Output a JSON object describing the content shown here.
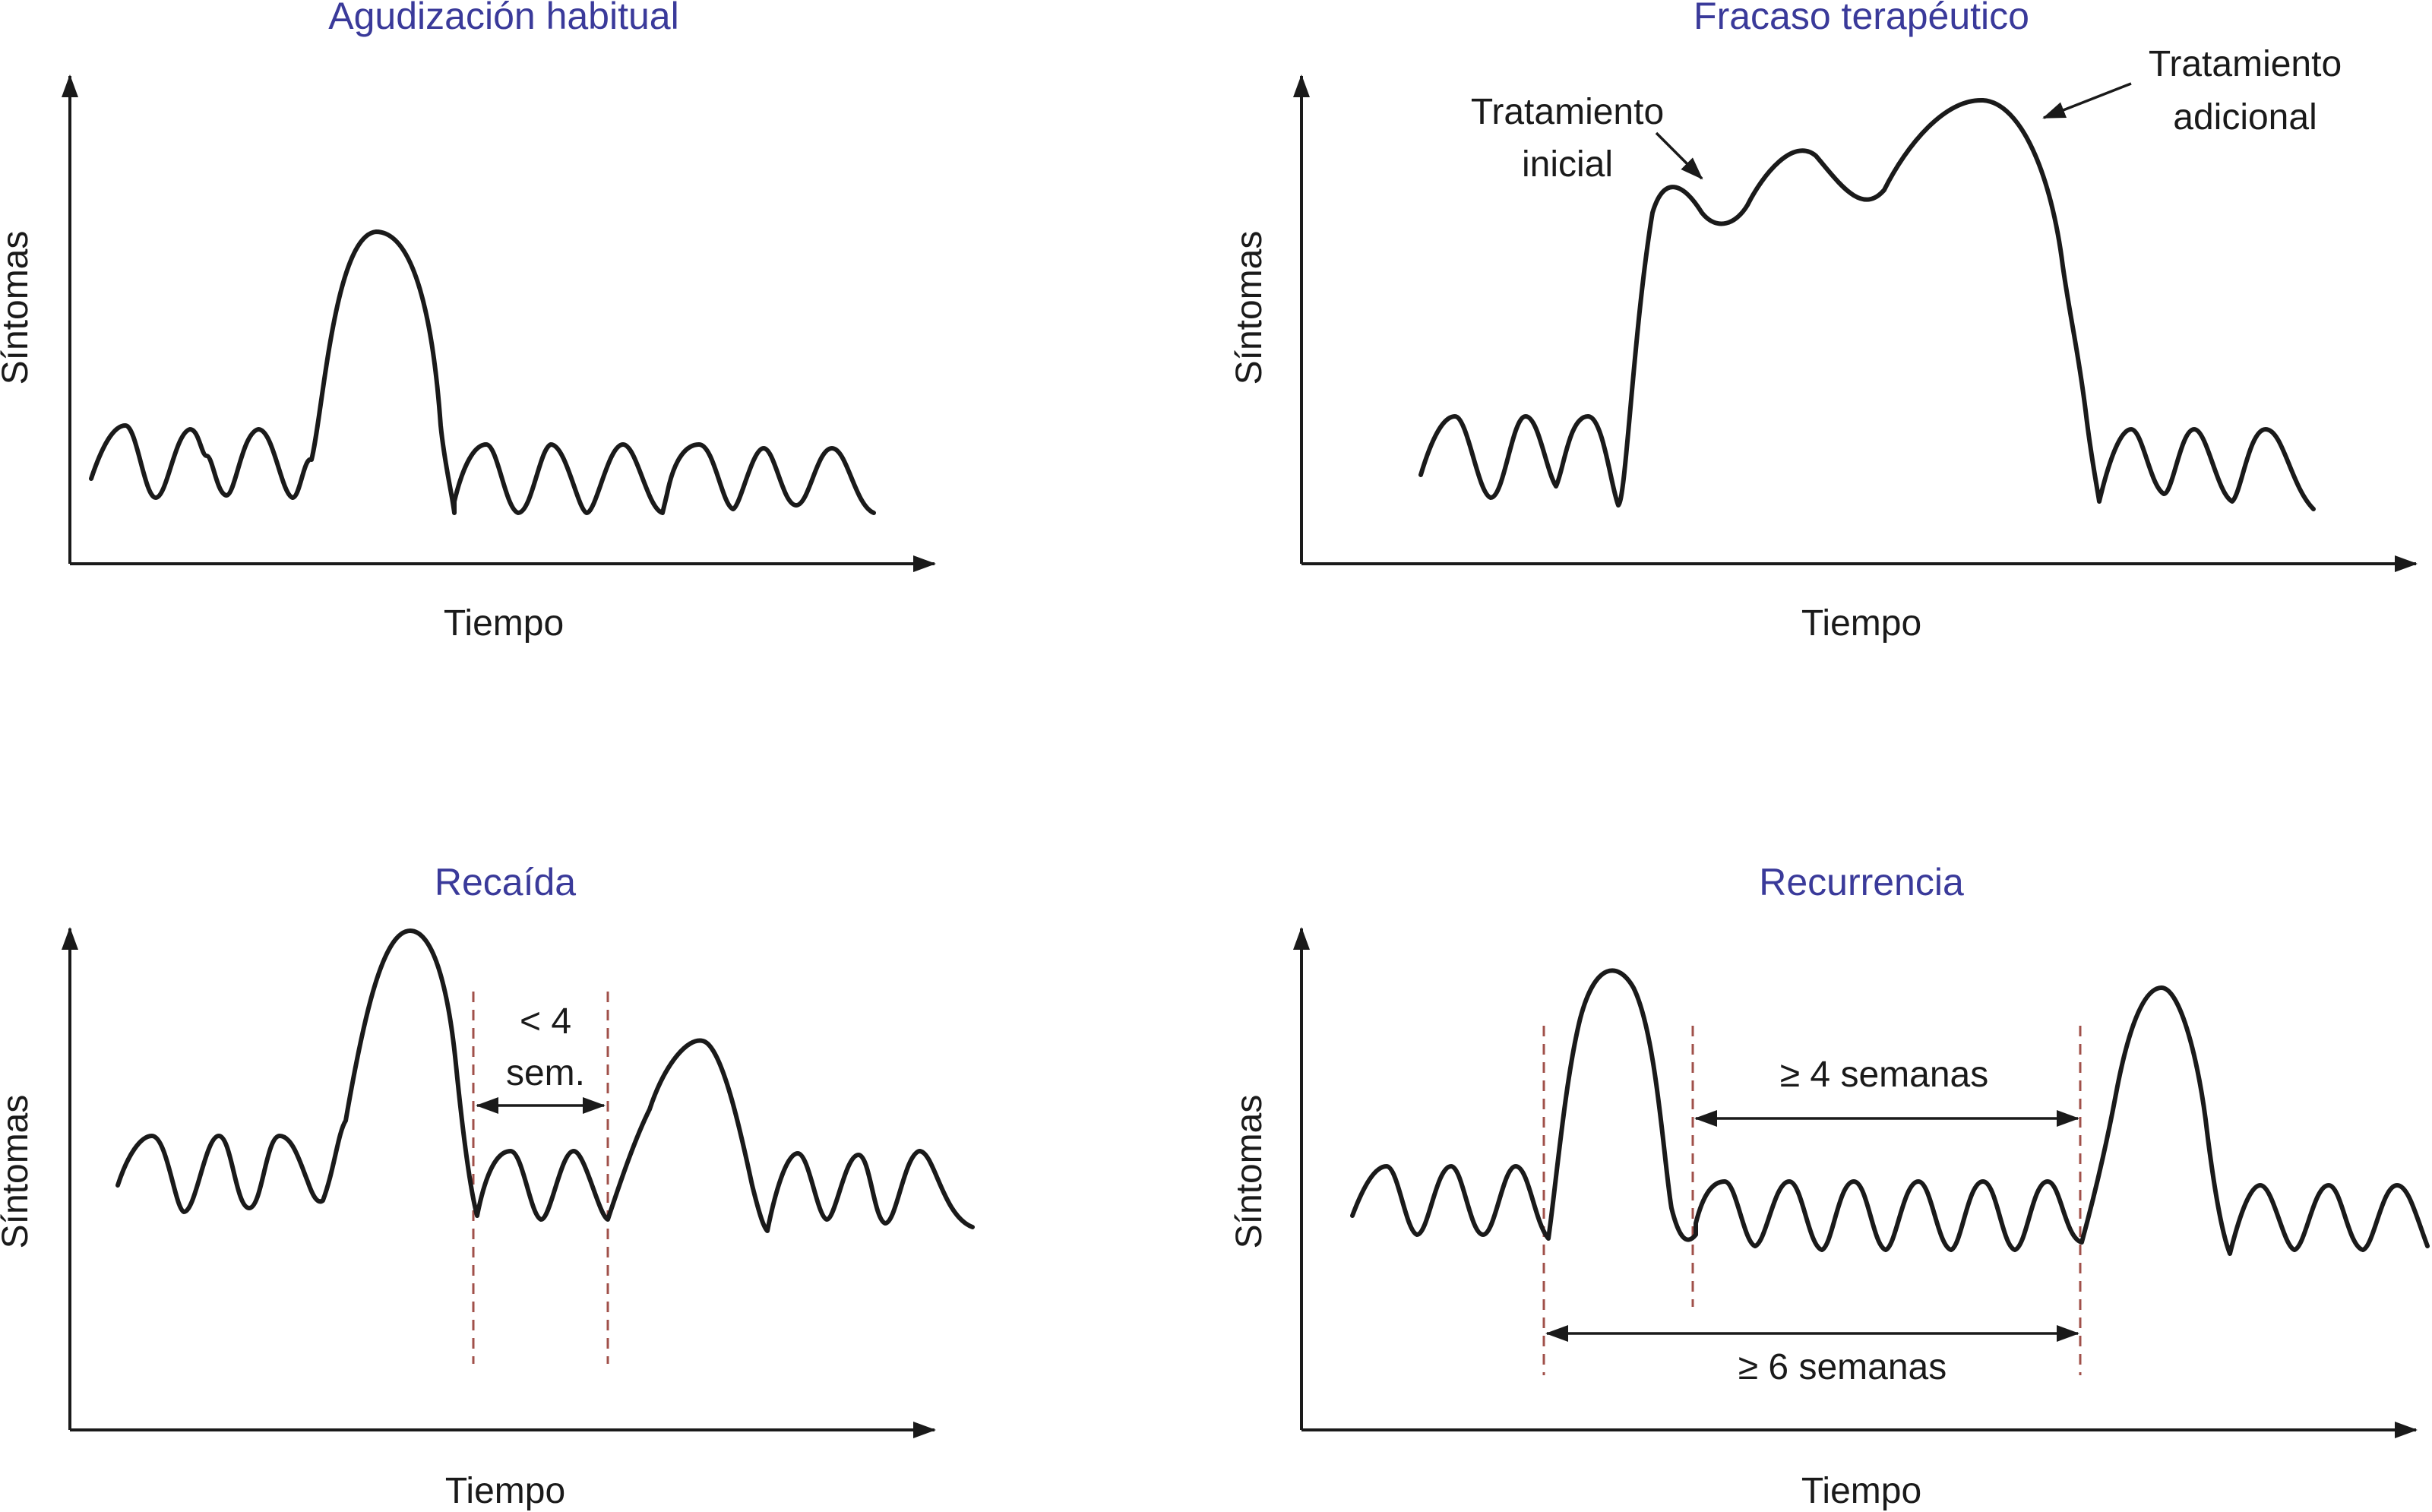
{
  "colors": {
    "title": "#3a3a9a",
    "text": "#1a1a1a",
    "dashed_guides": "#a0504a"
  },
  "panels": [
    {
      "title": "Agudización habitual",
      "ylabel": "Síntomas",
      "xlabel": "Tiempo"
    },
    {
      "title": "Fracaso terapéutico",
      "ylabel": "Síntomas",
      "xlabel": "Tiempo",
      "annotations": {
        "initial_line1": "Tratamiento",
        "initial_line2": "inicial",
        "additional_line1": "Tratamiento",
        "additional_line2": "adicional"
      }
    },
    {
      "title": "Recaída",
      "ylabel": "Síntomas",
      "xlabel": "Tiempo",
      "annotations": {
        "interval_line1": "< 4",
        "interval_line2": "sem."
      }
    },
    {
      "title": "Recurrencia",
      "ylabel": "Síntomas",
      "xlabel": "Tiempo",
      "annotations": {
        "inner_interval": "≥ 4 semanas",
        "outer_interval": "≥ 6 semanas"
      }
    }
  ]
}
